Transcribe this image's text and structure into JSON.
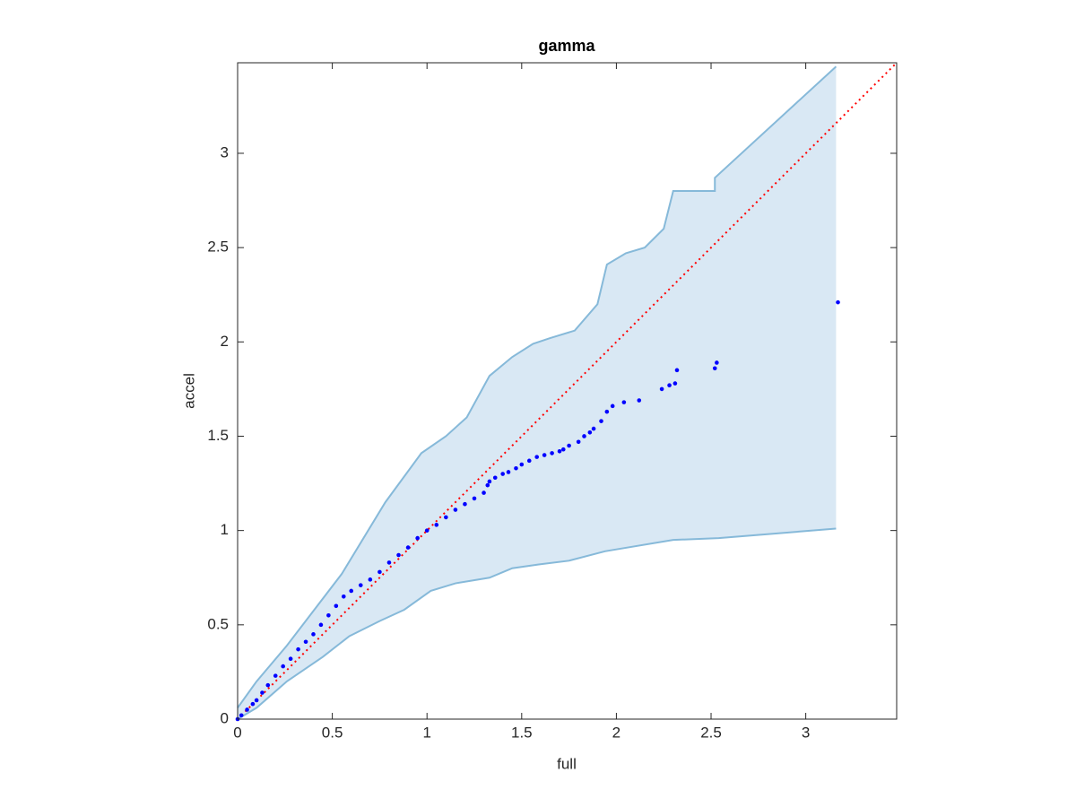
{
  "chart_data": {
    "type": "scatter",
    "title": "gamma",
    "xlabel": "full",
    "ylabel": "accel",
    "xlim": [
      0,
      3.48
    ],
    "ylim": [
      0,
      3.48
    ],
    "xticks": [
      0,
      0.5,
      1,
      1.5,
      2,
      2.5,
      3
    ],
    "yticks": [
      0,
      0.5,
      1,
      1.5,
      2,
      2.5,
      3
    ],
    "color": "#0000ff",
    "x": [
      0,
      0.02,
      0.05,
      0.08,
      0.1,
      0.13,
      0.16,
      0.2,
      0.24,
      0.28,
      0.32,
      0.36,
      0.4,
      0.44,
      0.48,
      0.52,
      0.56,
      0.6,
      0.65,
      0.7,
      0.75,
      0.8,
      0.85,
      0.9,
      0.95,
      1.0,
      1.05,
      1.1,
      1.15,
      1.2,
      1.25,
      1.3,
      1.32,
      1.33,
      1.36,
      1.4,
      1.43,
      1.47,
      1.5,
      1.54,
      1.58,
      1.62,
      1.66,
      1.7,
      1.72,
      1.75,
      1.8,
      1.83,
      1.86,
      1.88,
      1.92,
      1.95,
      1.98,
      2.04,
      2.12,
      2.24,
      2.28,
      2.31,
      2.32,
      2.52,
      2.53,
      3.17
    ],
    "y": [
      0,
      0.02,
      0.05,
      0.08,
      0.1,
      0.14,
      0.18,
      0.23,
      0.28,
      0.32,
      0.37,
      0.41,
      0.45,
      0.5,
      0.55,
      0.6,
      0.65,
      0.68,
      0.71,
      0.74,
      0.78,
      0.83,
      0.87,
      0.91,
      0.96,
      1.0,
      1.03,
      1.07,
      1.11,
      1.14,
      1.17,
      1.2,
      1.24,
      1.26,
      1.28,
      1.3,
      1.31,
      1.33,
      1.35,
      1.37,
      1.39,
      1.4,
      1.41,
      1.42,
      1.43,
      1.45,
      1.47,
      1.5,
      1.52,
      1.54,
      1.58,
      1.63,
      1.66,
      1.68,
      1.69,
      1.75,
      1.77,
      1.78,
      1.85,
      1.86,
      1.89,
      2.21
    ],
    "band_color": "#86b9d9",
    "band_fill": "#d9e8f4",
    "band_upper": {
      "x": [
        0,
        0.1,
        0.26,
        0.55,
        0.78,
        0.97,
        1.1,
        1.21,
        1.33,
        1.45,
        1.56,
        1.65,
        1.78,
        1.9,
        1.95,
        2.05,
        2.15,
        2.25,
        2.3,
        2.52,
        2.52,
        3.16
      ],
      "y": [
        0.06,
        0.2,
        0.39,
        0.77,
        1.15,
        1.41,
        1.5,
        1.6,
        1.82,
        1.92,
        1.99,
        2.02,
        2.06,
        2.2,
        2.41,
        2.47,
        2.5,
        2.6,
        2.8,
        2.8,
        2.87,
        3.46
      ]
    },
    "band_lower": {
      "x": [
        0,
        0.1,
        0.26,
        0.45,
        0.59,
        0.75,
        0.88,
        1.02,
        1.15,
        1.33,
        1.45,
        1.59,
        1.75,
        1.94,
        2.0,
        2.3,
        2.54,
        3.16
      ],
      "y": [
        0,
        0.06,
        0.2,
        0.33,
        0.44,
        0.52,
        0.58,
        0.68,
        0.72,
        0.75,
        0.8,
        0.82,
        0.84,
        0.89,
        0.9,
        0.95,
        0.96,
        1.01
      ]
    },
    "reference_line": {
      "x": [
        0,
        3.48
      ],
      "y": [
        0,
        3.48
      ],
      "color": "#ff0000"
    }
  }
}
